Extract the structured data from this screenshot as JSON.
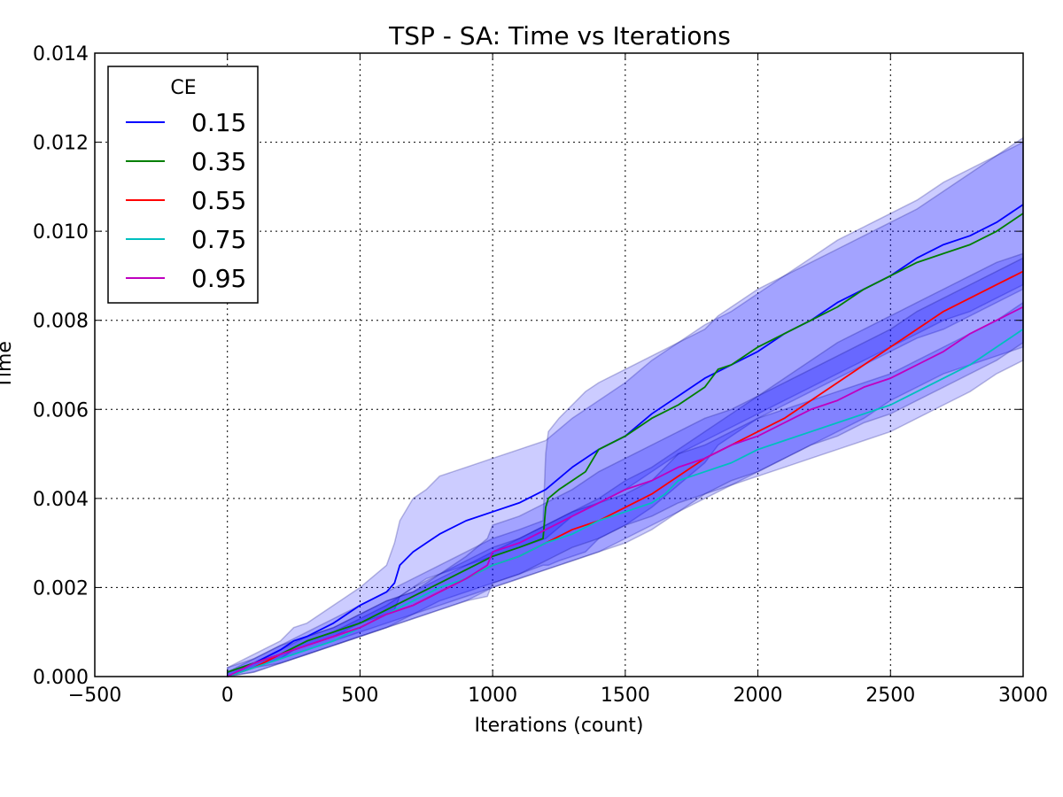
{
  "chart_data": {
    "type": "line",
    "title": "TSP - SA: Time vs Iterations",
    "xlabel": "Iterations (count)",
    "ylabel": "Time",
    "xlim": [
      -500,
      3000
    ],
    "ylim": [
      0,
      0.014
    ],
    "x_ticks": [
      "−500",
      "0",
      "500",
      "1000",
      "1500",
      "2000",
      "2500",
      "3000"
    ],
    "y_ticks": [
      "0.000",
      "0.002",
      "0.004",
      "0.006",
      "0.008",
      "0.010",
      "0.012",
      "0.014"
    ],
    "grid": true,
    "legend": {
      "title": "CE",
      "placement": "top-left"
    },
    "band_color": "#0000ff",
    "series": [
      {
        "name": "0.15",
        "color": "#0000ff",
        "x": [
          0,
          100,
          200,
          250,
          300,
          400,
          500,
          600,
          630,
          650,
          700,
          750,
          800,
          900,
          1000,
          1100,
          1200,
          1300,
          1400,
          1500,
          1600,
          1700,
          1800,
          1900,
          2000,
          2100,
          2200,
          2300,
          2400,
          2500,
          2600,
          2700,
          2800,
          2900,
          3000
        ],
        "y": [
          0.0001,
          0.0003,
          0.0006,
          0.0008,
          0.0009,
          0.0012,
          0.0016,
          0.0019,
          0.0021,
          0.0025,
          0.0028,
          0.003,
          0.0032,
          0.0035,
          0.0037,
          0.0039,
          0.0042,
          0.0047,
          0.0051,
          0.0054,
          0.0059,
          0.0063,
          0.0067,
          0.007,
          0.0073,
          0.0077,
          0.008,
          0.0084,
          0.0087,
          0.009,
          0.0094,
          0.0097,
          0.0099,
          0.0102,
          0.0106
        ],
        "lower": [
          0.0,
          0.0002,
          0.0004,
          0.0006,
          0.0007,
          0.0009,
          0.0012,
          0.0014,
          0.0015,
          0.0018,
          0.002,
          0.0022,
          0.0023,
          0.0025,
          0.0027,
          0.0029,
          0.0031,
          0.0036,
          0.0039,
          0.0042,
          0.0046,
          0.005,
          0.0053,
          0.0056,
          0.0059,
          0.0062,
          0.0065,
          0.0068,
          0.0071,
          0.0074,
          0.0077,
          0.008,
          0.0082,
          0.0085,
          0.0088
        ],
        "upper": [
          0.0002,
          0.0005,
          0.0008,
          0.0011,
          0.0012,
          0.0016,
          0.002,
          0.0025,
          0.003,
          0.0035,
          0.004,
          0.0042,
          0.0045,
          0.0047,
          0.0049,
          0.0051,
          0.0053,
          0.0058,
          0.0062,
          0.0066,
          0.0071,
          0.0075,
          0.0079,
          0.0082,
          0.0086,
          0.009,
          0.0094,
          0.0098,
          0.0101,
          0.0104,
          0.0107,
          0.0111,
          0.0114,
          0.0117,
          0.012
        ]
      },
      {
        "name": "0.35",
        "color": "#007f00",
        "x": [
          0,
          100,
          200,
          300,
          400,
          500,
          600,
          700,
          800,
          900,
          1000,
          1100,
          1190,
          1200,
          1210,
          1250,
          1300,
          1350,
          1400,
          1500,
          1600,
          1700,
          1800,
          1850,
          1900,
          2000,
          2100,
          2200,
          2300,
          2400,
          2500,
          2600,
          2700,
          2800,
          2900,
          3000
        ],
        "y": [
          0.0001,
          0.0003,
          0.0005,
          0.0008,
          0.001,
          0.0012,
          0.0015,
          0.0018,
          0.0021,
          0.0024,
          0.0027,
          0.0029,
          0.0031,
          0.0038,
          0.004,
          0.0042,
          0.0044,
          0.0046,
          0.0051,
          0.0054,
          0.0058,
          0.0061,
          0.0065,
          0.0069,
          0.007,
          0.0074,
          0.0077,
          0.008,
          0.0083,
          0.0087,
          0.009,
          0.0093,
          0.0095,
          0.0097,
          0.01,
          0.0104
        ],
        "lower": [
          0.0,
          0.0002,
          0.0004,
          0.0006,
          0.0008,
          0.001,
          0.0012,
          0.0014,
          0.0017,
          0.0019,
          0.0021,
          0.0023,
          0.0025,
          0.0025,
          0.0025,
          0.0026,
          0.0027,
          0.0028,
          0.0031,
          0.0034,
          0.0038,
          0.0043,
          0.0048,
          0.0052,
          0.0054,
          0.0058,
          0.0061,
          0.0064,
          0.0067,
          0.007,
          0.0073,
          0.0076,
          0.0078,
          0.0081,
          0.0084,
          0.0087
        ],
        "upper": [
          0.0002,
          0.0004,
          0.0007,
          0.001,
          0.0013,
          0.0016,
          0.0019,
          0.0022,
          0.0025,
          0.0028,
          0.0031,
          0.0033,
          0.0035,
          0.005,
          0.0055,
          0.0058,
          0.0061,
          0.0064,
          0.0066,
          0.0069,
          0.0072,
          0.0075,
          0.0078,
          0.0081,
          0.0083,
          0.0087,
          0.009,
          0.0093,
          0.0096,
          0.0099,
          0.0102,
          0.0105,
          0.0109,
          0.0113,
          0.0117,
          0.0121
        ]
      },
      {
        "name": "0.55",
        "color": "#ff0000",
        "x": [
          0,
          100,
          200,
          300,
          400,
          500,
          600,
          700,
          800,
          900,
          1000,
          1100,
          1200,
          1300,
          1400,
          1500,
          1600,
          1700,
          1800,
          1900,
          2000,
          2100,
          2200,
          2300,
          2400,
          2500,
          2600,
          2700,
          2800,
          2900,
          3000
        ],
        "y": [
          0.0,
          0.0002,
          0.0005,
          0.0007,
          0.0009,
          0.0011,
          0.0014,
          0.0016,
          0.0019,
          0.0022,
          0.0025,
          0.0027,
          0.003,
          0.0033,
          0.0035,
          0.0038,
          0.0041,
          0.0045,
          0.0049,
          0.0052,
          0.0055,
          0.0058,
          0.0062,
          0.0066,
          0.007,
          0.0074,
          0.0078,
          0.0082,
          0.0085,
          0.0088,
          0.0091
        ],
        "lower": [
          0.0,
          0.0001,
          0.0003,
          0.0005,
          0.0007,
          0.0009,
          0.0011,
          0.0013,
          0.0015,
          0.0017,
          0.002,
          0.0022,
          0.0024,
          0.0026,
          0.0028,
          0.0031,
          0.0034,
          0.0037,
          0.004,
          0.0043,
          0.0046,
          0.0049,
          0.0052,
          0.0055,
          0.0058,
          0.0062,
          0.0065,
          0.0068,
          0.007,
          0.0072,
          0.0074
        ],
        "upper": [
          0.0001,
          0.0003,
          0.0006,
          0.0009,
          0.0011,
          0.0014,
          0.0017,
          0.0019,
          0.0022,
          0.0025,
          0.0028,
          0.0031,
          0.0034,
          0.0037,
          0.004,
          0.0044,
          0.0047,
          0.0051,
          0.0055,
          0.0059,
          0.0063,
          0.0067,
          0.0071,
          0.0075,
          0.0078,
          0.0081,
          0.0084,
          0.0087,
          0.009,
          0.0093,
          0.0095
        ]
      },
      {
        "name": "0.75",
        "color": "#00bfbf",
        "x": [
          0,
          100,
          200,
          300,
          400,
          500,
          600,
          700,
          800,
          900,
          1000,
          1100,
          1200,
          1300,
          1400,
          1500,
          1600,
          1650,
          1700,
          1800,
          1900,
          2000,
          2100,
          2200,
          2300,
          2400,
          2500,
          2600,
          2700,
          2800,
          2900,
          3000
        ],
        "y": [
          0.0,
          0.0002,
          0.0004,
          0.0006,
          0.0008,
          0.0011,
          0.0014,
          0.0017,
          0.002,
          0.0022,
          0.0025,
          0.0027,
          0.003,
          0.0032,
          0.0035,
          0.0037,
          0.0039,
          0.0041,
          0.0044,
          0.0046,
          0.0048,
          0.0051,
          0.0053,
          0.0055,
          0.0057,
          0.0059,
          0.0061,
          0.0064,
          0.0067,
          0.007,
          0.0074,
          0.0078
        ],
        "lower": [
          0.0,
          0.0001,
          0.0003,
          0.0005,
          0.0007,
          0.0009,
          0.0011,
          0.0014,
          0.0016,
          0.0018,
          0.002,
          0.0022,
          0.0024,
          0.0026,
          0.0028,
          0.003,
          0.0033,
          0.0035,
          0.0037,
          0.0041,
          0.0043,
          0.0045,
          0.0047,
          0.0049,
          0.0051,
          0.0053,
          0.0055,
          0.0058,
          0.0061,
          0.0064,
          0.0068,
          0.0071
        ],
        "upper": [
          0.0001,
          0.0003,
          0.0005,
          0.0008,
          0.001,
          0.0013,
          0.0016,
          0.002,
          0.0023,
          0.0026,
          0.0029,
          0.0031,
          0.0034,
          0.0037,
          0.0039,
          0.0041,
          0.0044,
          0.0047,
          0.005,
          0.0052,
          0.0055,
          0.0058,
          0.006,
          0.0062,
          0.0064,
          0.0066,
          0.0068,
          0.0071,
          0.0074,
          0.0077,
          0.008,
          0.0084
        ]
      },
      {
        "name": "0.95",
        "color": "#bf00bf",
        "x": [
          0,
          100,
          200,
          300,
          400,
          500,
          600,
          700,
          800,
          900,
          980,
          1000,
          1100,
          1200,
          1300,
          1400,
          1500,
          1600,
          1700,
          1800,
          1900,
          2000,
          2100,
          2200,
          2300,
          2400,
          2500,
          2600,
          2700,
          2800,
          2900,
          3000
        ],
        "y": [
          0.0,
          0.0003,
          0.0005,
          0.0007,
          0.0009,
          0.0011,
          0.0014,
          0.0016,
          0.0019,
          0.0022,
          0.0025,
          0.0028,
          0.003,
          0.0033,
          0.0036,
          0.0039,
          0.0042,
          0.0044,
          0.0047,
          0.0049,
          0.0052,
          0.0054,
          0.0057,
          0.006,
          0.0062,
          0.0065,
          0.0067,
          0.007,
          0.0073,
          0.0077,
          0.008,
          0.0083
        ],
        "lower": [
          0.0,
          0.0002,
          0.0003,
          0.0005,
          0.0007,
          0.0009,
          0.0011,
          0.0013,
          0.0015,
          0.0017,
          0.0018,
          0.0021,
          0.0023,
          0.0026,
          0.0029,
          0.0031,
          0.0034,
          0.0036,
          0.0039,
          0.0041,
          0.0044,
          0.0046,
          0.0049,
          0.0052,
          0.0054,
          0.0057,
          0.0059,
          0.0062,
          0.0065,
          0.0068,
          0.0071,
          0.0075
        ],
        "upper": [
          0.0001,
          0.0004,
          0.0007,
          0.0009,
          0.0011,
          0.0014,
          0.0017,
          0.0019,
          0.0023,
          0.0027,
          0.0031,
          0.0034,
          0.0036,
          0.0039,
          0.0042,
          0.0046,
          0.0049,
          0.0052,
          0.0055,
          0.0058,
          0.006,
          0.0063,
          0.0066,
          0.0069,
          0.0072,
          0.0075,
          0.0078,
          0.0082,
          0.0085,
          0.0088,
          0.0091,
          0.0094
        ]
      }
    ]
  }
}
